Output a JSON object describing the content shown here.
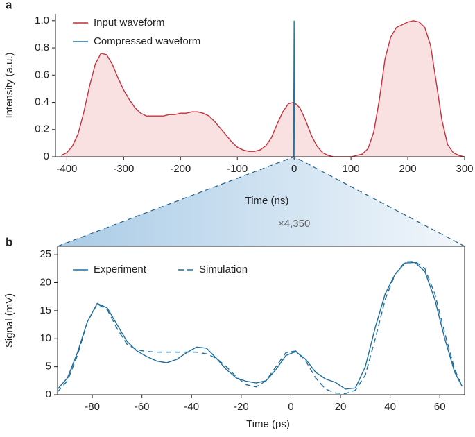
{
  "chart_data": [
    {
      "type": "line",
      "panel_label": "a",
      "xlabel": "Time (ns)",
      "ylabel": "Intensity (a.u.)",
      "xlim": [
        -420,
        300
      ],
      "ylim": [
        0,
        1.05
      ],
      "xticks": [
        -400,
        -300,
        -200,
        -100,
        0,
        100,
        200,
        300
      ],
      "yticks": [
        0,
        0.2,
        0.4,
        0.6,
        0.8,
        {
          "value": 1,
          "label": "1.0"
        }
      ],
      "legend": "upper left",
      "series": [
        {
          "name": "Input waveform",
          "color": "#c62f3c",
          "fill": "#f9e1e2",
          "x": [
            -410,
            -400,
            -390,
            -380,
            -370,
            -360,
            -350,
            -340,
            -330,
            -320,
            -310,
            -300,
            -290,
            -280,
            -270,
            -260,
            -250,
            -240,
            -230,
            -220,
            -210,
            -200,
            -190,
            -180,
            -170,
            -160,
            -150,
            -140,
            -130,
            -120,
            -110,
            -100,
            -90,
            -80,
            -70,
            -60,
            -50,
            -40,
            -30,
            -20,
            -10,
            0,
            10,
            20,
            30,
            40,
            50,
            60,
            70,
            80,
            90,
            100,
            110,
            120,
            130,
            140,
            150,
            160,
            170,
            180,
            190,
            200,
            210,
            220,
            230,
            240,
            250,
            260,
            270,
            280,
            290,
            300
          ],
          "values": [
            0.01,
            0.03,
            0.08,
            0.17,
            0.33,
            0.52,
            0.68,
            0.76,
            0.75,
            0.68,
            0.58,
            0.49,
            0.42,
            0.36,
            0.32,
            0.3,
            0.3,
            0.3,
            0.3,
            0.31,
            0.31,
            0.32,
            0.32,
            0.33,
            0.33,
            0.32,
            0.3,
            0.26,
            0.21,
            0.16,
            0.11,
            0.07,
            0.05,
            0.04,
            0.04,
            0.05,
            0.08,
            0.14,
            0.24,
            0.33,
            0.39,
            0.4,
            0.36,
            0.27,
            0.16,
            0.08,
            0.03,
            0.01,
            0,
            0,
            0,
            0,
            0.01,
            0.02,
            0.06,
            0.18,
            0.42,
            0.72,
            0.88,
            0.95,
            0.97,
            0.99,
            1.0,
            0.99,
            0.95,
            0.82,
            0.55,
            0.27,
            0.09,
            0.03,
            0.01,
            0
          ]
        },
        {
          "name": "Compressed waveform",
          "color": "#1f76a3",
          "x": [
            -1,
            0,
            1
          ],
          "values": [
            0,
            1.0,
            0
          ]
        }
      ]
    },
    {
      "type": "line",
      "panel_label": "b",
      "xlabel": "Time (ps)",
      "ylabel": "Signal (mV)",
      "annotation": "×4,350",
      "xlim": [
        -94,
        70
      ],
      "ylim": [
        0,
        26.5
      ],
      "xticks": [
        -80,
        -60,
        -40,
        -20,
        0,
        20,
        40,
        60
      ],
      "yticks": [
        0,
        5,
        10,
        15,
        20,
        25
      ],
      "legend": "upper left",
      "series": [
        {
          "name": "Experiment",
          "color": "#1f6e9c",
          "dash": "solid",
          "x": [
            -94,
            -90,
            -86,
            -82,
            -78,
            -74,
            -70,
            -66,
            -62,
            -58,
            -54,
            -50,
            -46,
            -42,
            -38,
            -34,
            -30,
            -26,
            -22,
            -18,
            -14,
            -10,
            -6,
            -2,
            2,
            6,
            10,
            14,
            18,
            22,
            26,
            30,
            34,
            38,
            42,
            46,
            50,
            54,
            58,
            62,
            66,
            69
          ],
          "values": [
            1.0,
            3.0,
            7.5,
            13,
            16.3,
            15.5,
            12.5,
            9.5,
            7.8,
            6.8,
            6.0,
            5.7,
            6.3,
            7.5,
            8.5,
            8.3,
            6.5,
            4.5,
            3.0,
            2.4,
            2.1,
            2.5,
            4.5,
            7.0,
            7.7,
            6.3,
            4.0,
            2.8,
            2.2,
            1.0,
            1.2,
            5,
            12,
            18,
            21.5,
            23.5,
            23.6,
            22,
            17,
            10,
            4,
            1.5
          ]
        },
        {
          "name": "Simulation",
          "color": "#1f6e9c",
          "dash": "dashed",
          "x": [
            -94,
            -90,
            -86,
            -82,
            -78,
            -74,
            -70,
            -66,
            -62,
            -58,
            -54,
            -50,
            -46,
            -42,
            -38,
            -34,
            -30,
            -26,
            -22,
            -18,
            -14,
            -10,
            -6,
            -2,
            2,
            6,
            10,
            14,
            18,
            22,
            26,
            30,
            34,
            38,
            42,
            46,
            50,
            54,
            58,
            62,
            66,
            69
          ],
          "values": [
            0.5,
            2.5,
            7,
            13,
            16.2,
            15.2,
            11.8,
            9.0,
            8.0,
            7.7,
            7.6,
            7.6,
            7.6,
            7.6,
            7.6,
            7.3,
            6.5,
            5.0,
            3.2,
            1.8,
            1.4,
            2.5,
            5.0,
            7.5,
            7.8,
            6.0,
            3.0,
            1.0,
            0.3,
            0.2,
            0.8,
            3.5,
            10,
            17,
            21.5,
            23.7,
            23.8,
            22.5,
            18,
            11,
            4.5,
            1.5
          ]
        }
      ]
    }
  ]
}
